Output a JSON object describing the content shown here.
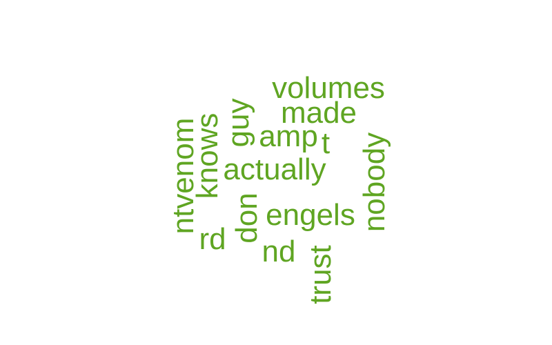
{
  "cloud": {
    "color": "#5fa522",
    "words": {
      "volumes": "volumes",
      "made": "made",
      "guy": "guy",
      "amp": "amp",
      "t": "t",
      "ntvenom": "ntvenom",
      "knows": "knows",
      "actually": "actually",
      "nobody": "nobody",
      "don": "don",
      "engels": "engels",
      "rd": "rd",
      "nd": "nd",
      "trust": "trust"
    }
  }
}
